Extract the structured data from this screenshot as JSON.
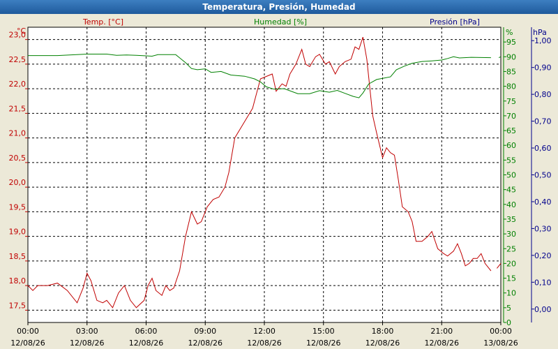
{
  "window": {
    "title": "Temperatura, Presión, Humedad"
  },
  "colors": {
    "temperature": "#c00000",
    "humidity": "#008000",
    "pressure": "#00008b",
    "background": "#ffffff"
  },
  "chart_data": {
    "type": "line",
    "title": "Temperatura, Presión, Humedad",
    "grid": true,
    "x": {
      "unit": "hours since 12/08/26 00:00",
      "range": [
        0,
        24
      ],
      "ticks": [
        {
          "t": 0,
          "time": "00:00",
          "date": "12/08/26"
        },
        {
          "t": 3,
          "time": "03:00",
          "date": "12/08/26"
        },
        {
          "t": 6,
          "time": "06:00",
          "date": "12/08/26"
        },
        {
          "t": 9,
          "time": "09:00",
          "date": "12/08/26"
        },
        {
          "t": 12,
          "time": "12:00",
          "date": "12/08/26"
        },
        {
          "t": 15,
          "time": "15:00",
          "date": "12/08/26"
        },
        {
          "t": 18,
          "time": "18:00",
          "date": "12/08/26"
        },
        {
          "t": 21,
          "time": "21:00",
          "date": "12/08/26"
        },
        {
          "t": 24,
          "time": "00:00",
          "date": "13/08/26"
        }
      ]
    },
    "axes": {
      "temperature": {
        "label": "Temp. [°C]",
        "unit": "°C",
        "range": [
          17.25,
          23.25
        ],
        "ticks": [
          {
            "v": 17.5,
            "label": "17,5"
          },
          {
            "v": 18.0,
            "label": "18,0"
          },
          {
            "v": 18.5,
            "label": "18,5"
          },
          {
            "v": 19.0,
            "label": "19,0"
          },
          {
            "v": 19.5,
            "label": "19,5"
          },
          {
            "v": 20.0,
            "label": "20,0"
          },
          {
            "v": 20.5,
            "label": "20,5"
          },
          {
            "v": 21.0,
            "label": "21,0"
          },
          {
            "v": 21.5,
            "label": "21,5"
          },
          {
            "v": 22.0,
            "label": "22,0"
          },
          {
            "v": 22.5,
            "label": "22,5"
          },
          {
            "v": 23.0,
            "label": "23,0"
          }
        ]
      },
      "humidity": {
        "label": "Humedad [%]",
        "unit": "%",
        "range": [
          0,
          100
        ],
        "ticks": [
          {
            "v": 0,
            "label": "0"
          },
          {
            "v": 5,
            "label": "5"
          },
          {
            "v": 10,
            "label": "10"
          },
          {
            "v": 15,
            "label": "15"
          },
          {
            "v": 20,
            "label": "20"
          },
          {
            "v": 25,
            "label": "25"
          },
          {
            "v": 30,
            "label": "30"
          },
          {
            "v": 35,
            "label": "35"
          },
          {
            "v": 40,
            "label": "40"
          },
          {
            "v": 45,
            "label": "45"
          },
          {
            "v": 50,
            "label": "50"
          },
          {
            "v": 55,
            "label": "55"
          },
          {
            "v": 60,
            "label": "60"
          },
          {
            "v": 65,
            "label": "65"
          },
          {
            "v": 70,
            "label": "70"
          },
          {
            "v": 75,
            "label": "75"
          },
          {
            "v": 80,
            "label": "80"
          },
          {
            "v": 85,
            "label": "85"
          },
          {
            "v": 90,
            "label": "90"
          },
          {
            "v": 95,
            "label": "95"
          }
        ]
      },
      "pressure": {
        "label": "Presión [hPa]",
        "unit": "hPa",
        "range": [
          -0.05,
          1.05
        ],
        "ticks": [
          {
            "v": 0.0,
            "label": "0,00"
          },
          {
            "v": 0.1,
            "label": "0,10"
          },
          {
            "v": 0.2,
            "label": "0,20"
          },
          {
            "v": 0.3,
            "label": "0,30"
          },
          {
            "v": 0.4,
            "label": "0,40"
          },
          {
            "v": 0.5,
            "label": "0,50"
          },
          {
            "v": 0.6,
            "label": "0,60"
          },
          {
            "v": 0.7,
            "label": "0,70"
          },
          {
            "v": 0.8,
            "label": "0,80"
          },
          {
            "v": 0.9,
            "label": "0,90"
          },
          {
            "v": 1.0,
            "label": "1,00"
          }
        ]
      }
    },
    "series": [
      {
        "name": "Temp. [°C]",
        "axis": "temperature",
        "segments": [
          [
            [
              0,
              18.0
            ],
            [
              0.25,
              17.9
            ],
            [
              0.5,
              18.0
            ],
            [
              1.0,
              18.0
            ],
            [
              1.5,
              18.05
            ],
            [
              2.0,
              17.9
            ],
            [
              2.5,
              17.65
            ],
            [
              2.8,
              17.95
            ],
            [
              3.0,
              18.25
            ],
            [
              3.2,
              18.1
            ],
            [
              3.5,
              17.7
            ],
            [
              3.8,
              17.65
            ],
            [
              4.0,
              17.7
            ],
            [
              4.3,
              17.55
            ],
            [
              4.6,
              17.85
            ],
            [
              4.9,
              18.0
            ],
            [
              5.2,
              17.7
            ],
            [
              5.5,
              17.55
            ],
            [
              5.9,
              17.7
            ],
            [
              6.1,
              18.0
            ],
            [
              6.3,
              18.15
            ],
            [
              6.5,
              17.9
            ],
            [
              6.8,
              17.8
            ],
            [
              7.0,
              18.0
            ],
            [
              7.2,
              17.9
            ],
            [
              7.4,
              17.95
            ],
            [
              7.7,
              18.3
            ],
            [
              8.0,
              19.0
            ],
            [
              8.3,
              19.5
            ],
            [
              8.6,
              19.25
            ],
            [
              8.8,
              19.3
            ],
            [
              9.1,
              19.6
            ],
            [
              9.4,
              19.75
            ],
            [
              9.7,
              19.8
            ],
            [
              10.0,
              20.0
            ],
            [
              10.2,
              20.3
            ],
            [
              10.5,
              21.0
            ],
            [
              10.8,
              21.2
            ],
            [
              11.1,
              21.4
            ],
            [
              11.4,
              21.6
            ],
            [
              11.6,
              21.9
            ],
            [
              11.8,
              22.2
            ],
            [
              12.1,
              22.25
            ],
            [
              12.4,
              22.3
            ],
            [
              12.6,
              21.95
            ],
            [
              12.9,
              22.1
            ],
            [
              13.1,
              22.05
            ],
            [
              13.3,
              22.3
            ],
            [
              13.6,
              22.5
            ],
            [
              13.9,
              22.8
            ],
            [
              14.1,
              22.5
            ],
            [
              14.3,
              22.45
            ],
            [
              14.6,
              22.65
            ],
            [
              14.8,
              22.7
            ],
            [
              15.1,
              22.5
            ],
            [
              15.3,
              22.55
            ],
            [
              15.6,
              22.3
            ],
            [
              15.8,
              22.45
            ],
            [
              16.1,
              22.55
            ],
            [
              16.4,
              22.6
            ],
            [
              16.6,
              22.85
            ],
            [
              16.8,
              22.8
            ],
            [
              17.0,
              23.05
            ],
            [
              17.2,
              22.6
            ],
            [
              17.5,
              21.45
            ],
            [
              17.7,
              21.1
            ],
            [
              18.0,
              20.6
            ],
            [
              18.2,
              20.8
            ],
            [
              18.4,
              20.7
            ],
            [
              18.6,
              20.65
            ],
            [
              18.8,
              20.15
            ],
            [
              19.0,
              19.6
            ],
            [
              19.3,
              19.5
            ],
            [
              19.5,
              19.3
            ],
            [
              19.7,
              18.9
            ],
            [
              20.0,
              18.9
            ],
            [
              20.3,
              19.0
            ],
            [
              20.5,
              19.1
            ],
            [
              20.8,
              18.75
            ],
            [
              21.1,
              18.65
            ],
            [
              21.3,
              18.6
            ],
            [
              21.6,
              18.7
            ],
            [
              21.8,
              18.85
            ],
            [
              22.0,
              18.65
            ],
            [
              22.2,
              18.4
            ],
            [
              22.4,
              18.45
            ],
            [
              22.6,
              18.55
            ],
            [
              22.8,
              18.55
            ],
            [
              23.0,
              18.65
            ],
            [
              23.2,
              18.45
            ],
            [
              23.5,
              18.3
            ]
          ],
          [
            [
              23.8,
              18.35
            ],
            [
              24.0,
              18.45
            ]
          ]
        ]
      },
      {
        "name": "Humedad [%]",
        "axis": "humidity",
        "segments": [
          [
            [
              0,
              90.4
            ],
            [
              1.5,
              90.4
            ],
            [
              3.0,
              90.9
            ],
            [
              4.0,
              90.9
            ],
            [
              4.5,
              90.5
            ],
            [
              5.0,
              90.6
            ],
            [
              5.5,
              90.5
            ],
            [
              6.0,
              90.3
            ],
            [
              6.3,
              90.2
            ],
            [
              6.6,
              90.7
            ],
            [
              7.5,
              90.7
            ],
            [
              8.0,
              88.0
            ],
            [
              8.3,
              86.0
            ],
            [
              8.6,
              85.6
            ],
            [
              9.0,
              85.9
            ],
            [
              9.3,
              84.7
            ],
            [
              9.8,
              85.0
            ],
            [
              10.3,
              83.8
            ],
            [
              11.0,
              83.4
            ],
            [
              11.5,
              82.5
            ],
            [
              11.8,
              81.5
            ],
            [
              12.1,
              79.8
            ],
            [
              12.5,
              79.0
            ],
            [
              13.0,
              79.2
            ],
            [
              13.7,
              77.5
            ],
            [
              14.3,
              77.5
            ],
            [
              14.8,
              78.5
            ],
            [
              15.3,
              78.0
            ],
            [
              15.7,
              78.6
            ],
            [
              16.1,
              77.6
            ],
            [
              16.5,
              76.6
            ],
            [
              16.8,
              76.1
            ],
            [
              17.0,
              77.7
            ],
            [
              17.3,
              80.8
            ],
            [
              17.7,
              82.3
            ],
            [
              18.0,
              82.7
            ],
            [
              18.4,
              83.2
            ],
            [
              18.7,
              85.6
            ],
            [
              19.1,
              86.8
            ],
            [
              19.5,
              87.8
            ],
            [
              20.0,
              88.4
            ],
            [
              20.5,
              88.6
            ],
            [
              21.0,
              88.9
            ],
            [
              21.3,
              89.4
            ],
            [
              21.6,
              90.0
            ],
            [
              21.9,
              89.6
            ],
            [
              22.5,
              89.8
            ],
            [
              23.5,
              89.7
            ]
          ],
          [
            [
              23.9,
              89.7
            ],
            [
              24.0,
              90.0
            ]
          ]
        ]
      }
    ]
  }
}
